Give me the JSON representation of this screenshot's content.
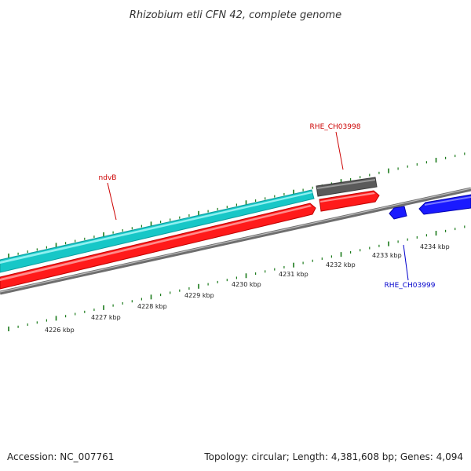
{
  "title": "Rhizobium etli CFN 42, complete genome",
  "footer": {
    "accession": "Accession: NC_007761",
    "summary": "Topology: circular; Length: 4,381,608 bp; Genes: 4,094"
  },
  "colors": {
    "cds_forward": "#ff0000",
    "cds_reverse": "#0000ff",
    "rna": "#00cccc",
    "other": "#555555",
    "backbone": "#808080",
    "ticks": "#1a7a1a",
    "label_red": "#cc0000",
    "label_blue": "#0000cc"
  },
  "kbp_labels": [
    "4226 kbp",
    "4227 kbp",
    "4228 kbp",
    "4229 kbp",
    "4230 kbp",
    "4231 kbp",
    "4232 kbp",
    "4233 kbp",
    "4234 kbp"
  ],
  "gene_labels": [
    {
      "text": "ndvB",
      "color": "#cc0000"
    },
    {
      "text": "RHE_CH03998",
      "color": "#cc0000"
    },
    {
      "text": "RHE_CH03999",
      "color": "#0000cc"
    }
  ]
}
